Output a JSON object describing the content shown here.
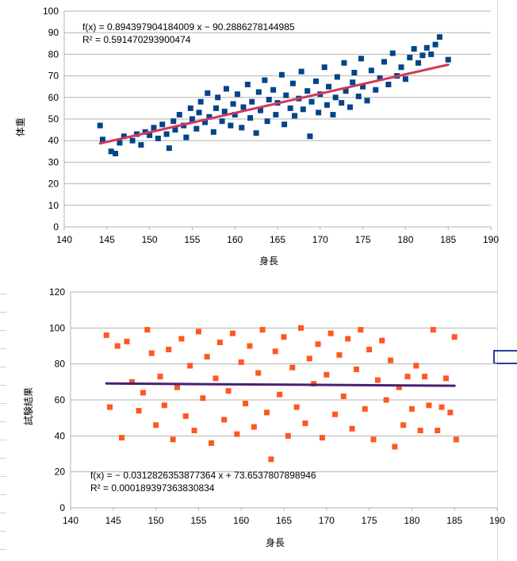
{
  "chart_data": [
    {
      "type": "scatter",
      "title": "",
      "xlabel": "身長",
      "ylabel": "体重",
      "xlim": [
        140,
        190
      ],
      "ylim": [
        0,
        100
      ],
      "xticks": [
        140,
        145,
        150,
        155,
        160,
        165,
        170,
        175,
        180,
        185,
        190
      ],
      "yticks": [
        0,
        10,
        20,
        30,
        40,
        50,
        60,
        70,
        80,
        90,
        100
      ],
      "grid": "horizontal",
      "marker_color": "#004586",
      "trendline": {
        "color": "#d2395b",
        "slope": 0.894397904184009,
        "intercept": -90.2886278144985,
        "x_range": [
          144.2,
          185.0
        ],
        "equation": "f(x) = 0.894397904184009 x − 90.2886278144985",
        "r2": "R² = 0.591470293900474"
      },
      "series": [
        {
          "name": "体重",
          "points": [
            [
              144.2,
              47.0
            ],
            [
              144.5,
              40.5
            ],
            [
              145.5,
              35.0
            ],
            [
              146.0,
              34.0
            ],
            [
              146.5,
              39.0
            ],
            [
              147.0,
              42.0
            ],
            [
              148.0,
              40.0
            ],
            [
              148.5,
              43.0
            ],
            [
              149.0,
              38.0
            ],
            [
              149.5,
              44.0
            ],
            [
              150.0,
              42.5
            ],
            [
              150.5,
              46.0
            ],
            [
              151.0,
              41.0
            ],
            [
              151.5,
              47.5
            ],
            [
              152.0,
              43.0
            ],
            [
              152.3,
              36.5
            ],
            [
              152.8,
              49.0
            ],
            [
              153.0,
              45.0
            ],
            [
              153.5,
              52.0
            ],
            [
              154.0,
              47.0
            ],
            [
              154.3,
              41.5
            ],
            [
              154.8,
              55.0
            ],
            [
              155.0,
              50.0
            ],
            [
              155.5,
              45.5
            ],
            [
              155.8,
              53.0
            ],
            [
              156.0,
              58.0
            ],
            [
              156.5,
              48.5
            ],
            [
              156.8,
              62.0
            ],
            [
              157.0,
              51.0
            ],
            [
              157.5,
              44.0
            ],
            [
              157.8,
              55.0
            ],
            [
              158.0,
              60.0
            ],
            [
              158.5,
              49.0
            ],
            [
              158.8,
              53.5
            ],
            [
              159.0,
              64.0
            ],
            [
              159.5,
              47.0
            ],
            [
              159.8,
              57.0
            ],
            [
              160.0,
              52.0
            ],
            [
              160.3,
              61.5
            ],
            [
              160.8,
              46.0
            ],
            [
              161.0,
              55.5
            ],
            [
              161.5,
              66.0
            ],
            [
              161.8,
              50.5
            ],
            [
              162.0,
              58.0
            ],
            [
              162.5,
              43.5
            ],
            [
              162.8,
              62.5
            ],
            [
              163.0,
              54.0
            ],
            [
              163.5,
              68.0
            ],
            [
              163.8,
              49.0
            ],
            [
              164.0,
              59.0
            ],
            [
              164.5,
              63.5
            ],
            [
              164.8,
              52.0
            ],
            [
              165.0,
              57.5
            ],
            [
              165.5,
              70.5
            ],
            [
              165.8,
              47.5
            ],
            [
              166.0,
              61.0
            ],
            [
              166.5,
              55.0
            ],
            [
              166.8,
              66.5
            ],
            [
              167.0,
              51.5
            ],
            [
              167.5,
              59.5
            ],
            [
              167.8,
              72.0
            ],
            [
              168.0,
              54.5
            ],
            [
              168.5,
              63.0
            ],
            [
              168.8,
              42.0
            ],
            [
              169.0,
              58.0
            ],
            [
              169.5,
              67.5
            ],
            [
              169.8,
              53.0
            ],
            [
              170.0,
              61.5
            ],
            [
              170.5,
              74.0
            ],
            [
              170.8,
              56.5
            ],
            [
              171.0,
              65.0
            ],
            [
              171.5,
              52.0
            ],
            [
              171.8,
              60.0
            ],
            [
              172.0,
              69.5
            ],
            [
              172.5,
              57.5
            ],
            [
              172.8,
              76.0
            ],
            [
              173.0,
              63.0
            ],
            [
              173.5,
              55.5
            ],
            [
              173.8,
              67.0
            ],
            [
              174.0,
              71.5
            ],
            [
              174.5,
              60.5
            ],
            [
              174.8,
              78.0
            ],
            [
              175.0,
              65.0
            ],
            [
              175.5,
              58.5
            ],
            [
              176.0,
              72.5
            ],
            [
              176.5,
              63.5
            ],
            [
              177.0,
              69.0
            ],
            [
              177.5,
              76.5
            ],
            [
              178.0,
              66.0
            ],
            [
              178.5,
              80.5
            ],
            [
              179.0,
              70.0
            ],
            [
              179.5,
              74.0
            ],
            [
              180.0,
              68.5
            ],
            [
              180.5,
              78.5
            ],
            [
              181.0,
              82.5
            ],
            [
              181.5,
              76.0
            ],
            [
              182.0,
              79.5
            ],
            [
              182.5,
              83.0
            ],
            [
              183.0,
              80.0
            ],
            [
              183.5,
              84.5
            ],
            [
              184.0,
              88.0
            ],
            [
              185.0,
              77.5
            ]
          ]
        }
      ]
    },
    {
      "type": "scatter",
      "title": "",
      "xlabel": "身長",
      "ylabel": "試験結果",
      "xlim": [
        140,
        190
      ],
      "ylim": [
        0,
        120
      ],
      "xticks": [
        140,
        145,
        150,
        155,
        160,
        165,
        170,
        175,
        180,
        185,
        190
      ],
      "yticks": [
        0,
        20,
        40,
        60,
        80,
        100,
        120
      ],
      "grid": "horizontal",
      "marker_color": "#ff5722",
      "trendline": {
        "color": "#4b1f6f",
        "slope": -0.0312826353877364,
        "intercept": 73.6537807898946,
        "x_range": [
          144.2,
          185.0
        ],
        "equation": "f(x) = − 0.0312826353877364 x + 73.6537807898946",
        "r2": "R² = 0.000189397363830834"
      },
      "series": [
        {
          "name": "試験結果",
          "points": [
            [
              144.2,
              96.0
            ],
            [
              144.6,
              56.0
            ],
            [
              145.5,
              90.0
            ],
            [
              146.0,
              39.0
            ],
            [
              146.6,
              92.5
            ],
            [
              147.2,
              70.0
            ],
            [
              148.0,
              54.0
            ],
            [
              148.5,
              64.0
            ],
            [
              149.0,
              99.0
            ],
            [
              149.5,
              86.0
            ],
            [
              150.0,
              46.0
            ],
            [
              150.5,
              73.0
            ],
            [
              151.0,
              57.0
            ],
            [
              151.5,
              88.0
            ],
            [
              152.0,
              38.0
            ],
            [
              152.5,
              67.0
            ],
            [
              153.0,
              94.0
            ],
            [
              153.5,
              51.0
            ],
            [
              154.0,
              79.0
            ],
            [
              154.5,
              43.0
            ],
            [
              155.0,
              98.0
            ],
            [
              155.5,
              61.0
            ],
            [
              156.0,
              84.0
            ],
            [
              156.5,
              36.0
            ],
            [
              157.0,
              72.0
            ],
            [
              157.5,
              92.0
            ],
            [
              158.0,
              49.0
            ],
            [
              158.5,
              65.0
            ],
            [
              159.0,
              97.0
            ],
            [
              159.5,
              41.0
            ],
            [
              160.0,
              81.0
            ],
            [
              160.5,
              58.0
            ],
            [
              161.0,
              90.0
            ],
            [
              161.5,
              45.0
            ],
            [
              162.0,
              75.0
            ],
            [
              162.5,
              99.0
            ],
            [
              163.0,
              53.0
            ],
            [
              163.5,
              27.0
            ],
            [
              164.0,
              87.0
            ],
            [
              164.5,
              63.0
            ],
            [
              165.0,
              95.0
            ],
            [
              165.5,
              40.0
            ],
            [
              166.0,
              78.0
            ],
            [
              166.5,
              56.0
            ],
            [
              167.0,
              100.0
            ],
            [
              167.5,
              47.0
            ],
            [
              168.0,
              83.0
            ],
            [
              168.5,
              69.0
            ],
            [
              169.0,
              91.0
            ],
            [
              169.5,
              39.0
            ],
            [
              170.0,
              74.0
            ],
            [
              170.5,
              97.0
            ],
            [
              171.0,
              52.0
            ],
            [
              171.5,
              85.0
            ],
            [
              172.0,
              62.0
            ],
            [
              172.5,
              94.0
            ],
            [
              173.0,
              44.0
            ],
            [
              173.5,
              77.0
            ],
            [
              174.0,
              99.0
            ],
            [
              174.5,
              55.0
            ],
            [
              175.0,
              88.0
            ],
            [
              175.5,
              38.0
            ],
            [
              176.0,
              71.0
            ],
            [
              176.5,
              93.0
            ],
            [
              177.0,
              60.0
            ],
            [
              177.5,
              82.0
            ],
            [
              178.0,
              34.0
            ],
            [
              178.5,
              67.0
            ],
            [
              179.0,
              46.0
            ],
            [
              179.5,
              73.0
            ],
            [
              180.0,
              55.0
            ],
            [
              180.5,
              79.0
            ],
            [
              181.0,
              43.0
            ],
            [
              181.5,
              73.0
            ],
            [
              182.0,
              57.0
            ],
            [
              182.5,
              99.0
            ],
            [
              183.0,
              43.0
            ],
            [
              183.5,
              56.0
            ],
            [
              184.0,
              72.0
            ],
            [
              184.5,
              53.0
            ],
            [
              185.0,
              95.0
            ],
            [
              185.2,
              38.0
            ]
          ]
        }
      ]
    }
  ]
}
